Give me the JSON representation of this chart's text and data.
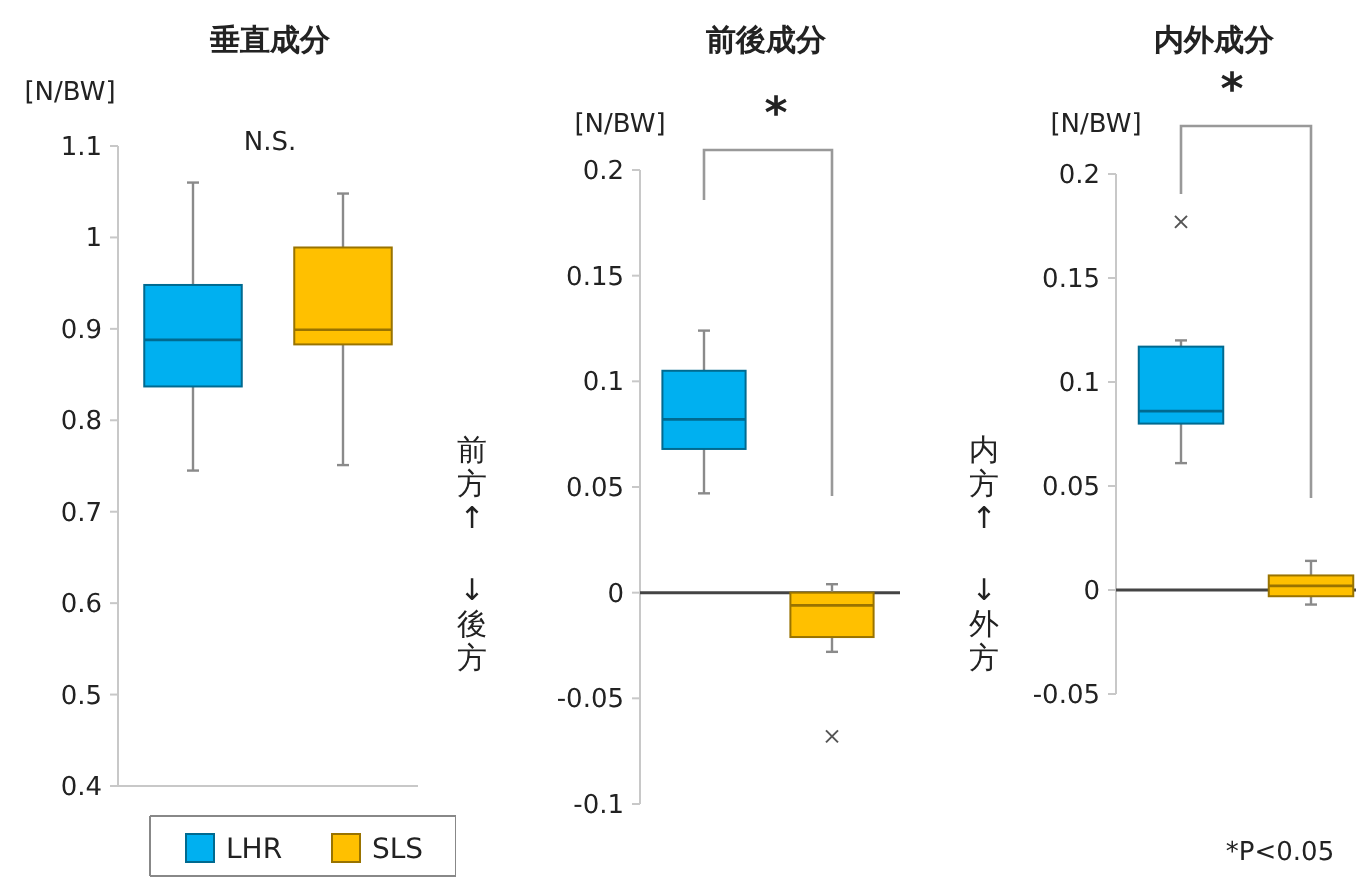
{
  "chart_data": [
    {
      "type": "box",
      "title": "垂直成分",
      "ylabel": "[N/BW]",
      "categories": [
        null
      ],
      "ylim": [
        0.4,
        1.1
      ],
      "yticks": [
        0.4,
        0.5,
        0.6,
        0.7,
        0.8,
        0.9,
        1,
        1.1
      ],
      "legend": "bottom",
      "annotations": [
        "N.S."
      ],
      "series": [
        {
          "name": "LHR",
          "color": "#00b0f0",
          "boxes": [
            {
              "low": 0.745,
              "q1": 0.837,
              "median": 0.888,
              "q3": 0.948,
              "high": 1.06
            }
          ]
        },
        {
          "name": "SLS",
          "color": "#ffc000",
          "boxes": [
            {
              "low": 0.751,
              "q1": 0.883,
              "median": 0.899,
              "q3": 0.989,
              "high": 1.048
            }
          ]
        }
      ]
    },
    {
      "type": "box",
      "title": "前後成分",
      "ylabel": "[N/BW]",
      "categories": [
        null
      ],
      "ylim": [
        -0.1,
        0.2
      ],
      "yticks": [
        -0.1,
        -0.05,
        0,
        0.05,
        0.1,
        0.15,
        0.2
      ],
      "annotations": [
        "*",
        "前方↑",
        "↓後方"
      ],
      "series": [
        {
          "color": "#00b0f0",
          "boxes": [
            {
              "low": 0.047,
              "q1": 0.068,
              "median": 0.082,
              "q3": 0.105,
              "high": 0.124
            }
          ]
        },
        {
          "color": "#ffc000",
          "boxes": [
            {
              "low": -0.028,
              "q1": -0.021,
              "median": -0.006,
              "q3": 0,
              "high": 0.004,
              "outliers": [
                -0.068
              ]
            }
          ]
        }
      ]
    },
    {
      "type": "box",
      "title": "内外成分",
      "ylabel": "[N/BW]",
      "categories": [
        null
      ],
      "ylim": [
        -0.05,
        0.2
      ],
      "yticks": [
        -0.05,
        0,
        0.05,
        0.1,
        0.15,
        0.2
      ],
      "annotations": [
        "*",
        "内方↑",
        "↓外方",
        "*P<0.05"
      ],
      "series": [
        {
          "color": "#00b0f0",
          "boxes": [
            {
              "low": 0.061,
              "q1": 0.08,
              "median": 0.086,
              "q3": 0.117,
              "high": 0.12,
              "outliers": [
                0.177
              ]
            }
          ]
        },
        {
          "color": "#ffc000",
          "boxes": [
            {
              "low": -0.007,
              "q1": -0.003,
              "median": 0.002,
              "q3": 0.007,
              "high": 0.014
            }
          ]
        }
      ]
    }
  ]
}
